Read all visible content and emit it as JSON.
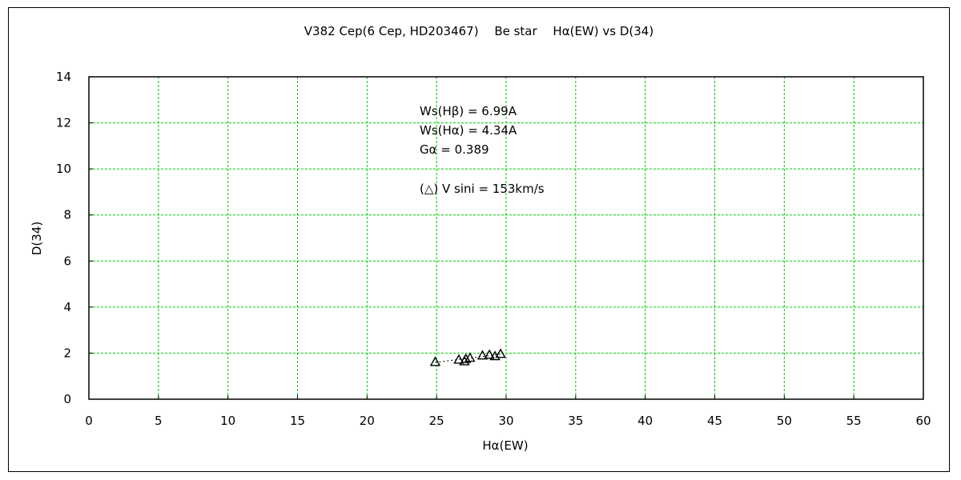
{
  "chart_data": {
    "type": "scatter",
    "title": "V382 Cep(6 Cep, HD203467)　 Be star　 Hα(EW) vs D(34)",
    "xlabel": "Hα(EW)",
    "ylabel": "D(34)",
    "xlim": [
      0,
      60
    ],
    "ylim": [
      0,
      14
    ],
    "x_ticks": [
      "0",
      "5",
      "10",
      "15",
      "20",
      "25",
      "30",
      "35",
      "40",
      "45",
      "50",
      "55",
      "60"
    ],
    "y_ticks": [
      "0",
      "2",
      "4",
      "6",
      "8",
      "10",
      "12",
      "14"
    ],
    "grid": true,
    "grid_color": "#00cc00",
    "marker": "open-triangle",
    "trend_line": "dotted",
    "points": [
      {
        "x": 24.9,
        "y": 1.62
      },
      {
        "x": 26.6,
        "y": 1.72
      },
      {
        "x": 27.0,
        "y": 1.65
      },
      {
        "x": 27.1,
        "y": 1.75
      },
      {
        "x": 27.4,
        "y": 1.8
      },
      {
        "x": 28.3,
        "y": 1.9
      },
      {
        "x": 28.8,
        "y": 1.93
      },
      {
        "x": 29.2,
        "y": 1.87
      },
      {
        "x": 29.6,
        "y": 1.97
      }
    ],
    "trend": [
      {
        "x": 24.9,
        "y": 1.6
      },
      {
        "x": 29.6,
        "y": 1.95
      }
    ],
    "annotations": [
      "Ws(Hβ) = 6.99A",
      "Ws(Hα) = 4.34A",
      "Gα = 0.389",
      "(△) V sini = 153km/s"
    ]
  }
}
